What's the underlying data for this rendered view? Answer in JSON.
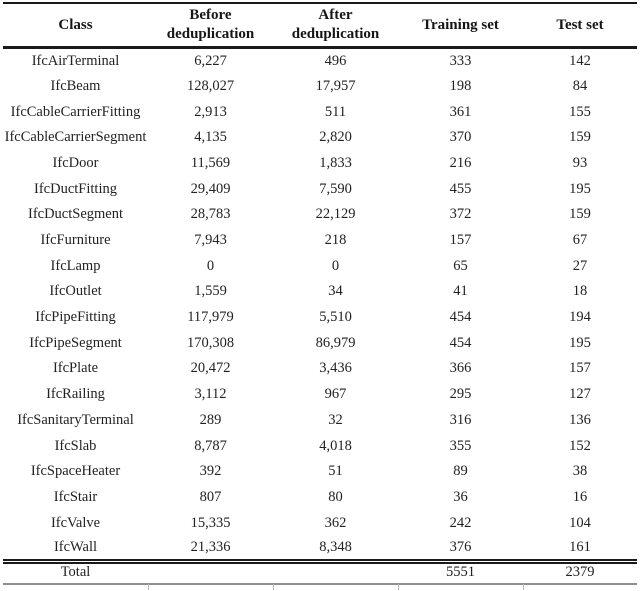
{
  "table": {
    "columns": [
      {
        "label": "Class"
      },
      {
        "label": "Before\ndeduplication"
      },
      {
        "label": "After\ndeduplication"
      },
      {
        "label": "Training set"
      },
      {
        "label": "Test set"
      }
    ],
    "rows": [
      [
        "IfcAirTerminal",
        "6,227",
        "496",
        "333",
        "142"
      ],
      [
        "IfcBeam",
        "128,027",
        "17,957",
        "198",
        "84"
      ],
      [
        "IfcCableCarrierFitting",
        "2,913",
        "511",
        "361",
        "155"
      ],
      [
        "IfcCableCarrierSegment",
        "4,135",
        "2,820",
        "370",
        "159"
      ],
      [
        "IfcDoor",
        "11,569",
        "1,833",
        "216",
        "93"
      ],
      [
        "IfcDuctFitting",
        "29,409",
        "7,590",
        "455",
        "195"
      ],
      [
        "IfcDuctSegment",
        "28,783",
        "22,129",
        "372",
        "159"
      ],
      [
        "IfcFurniture",
        "7,943",
        "218",
        "157",
        "67"
      ],
      [
        "IfcLamp",
        "0",
        "0",
        "65",
        "27"
      ],
      [
        "IfcOutlet",
        "1,559",
        "34",
        "41",
        "18"
      ],
      [
        "IfcPipeFitting",
        "117,979",
        "5,510",
        "454",
        "194"
      ],
      [
        "IfcPipeSegment",
        "170,308",
        "86,979",
        "454",
        "195"
      ],
      [
        "IfcPlate",
        "20,472",
        "3,436",
        "366",
        "157"
      ],
      [
        "IfcRailing",
        "3,112",
        "967",
        "295",
        "127"
      ],
      [
        "IfcSanitaryTerminal",
        "289",
        "32",
        "316",
        "136"
      ],
      [
        "IfcSlab",
        "8,787",
        "4,018",
        "355",
        "152"
      ],
      [
        "IfcSpaceHeater",
        "392",
        "51",
        "89",
        "38"
      ],
      [
        "IfcStair",
        "807",
        "80",
        "36",
        "16"
      ],
      [
        "IfcValve",
        "15,335",
        "362",
        "242",
        "104"
      ],
      [
        "IfcWall",
        "21,336",
        "8,348",
        "376",
        "161"
      ]
    ],
    "total_row": {
      "label": "Total",
      "before": "",
      "after": "",
      "training": "5551",
      "test": "2379"
    }
  },
  "colors": {
    "text": "#1e1e1e",
    "rule_dark": "#1a1a1a",
    "rule_bottom": "#8f8f8f"
  }
}
